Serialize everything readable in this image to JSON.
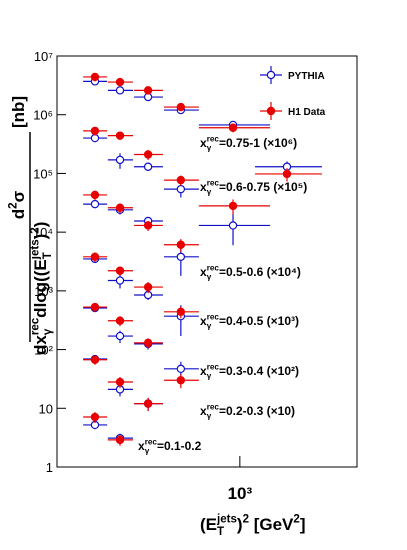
{
  "chart_data": {
    "type": "scatter",
    "log_x": true,
    "log_y": true,
    "xlim": [
      180,
      3000
    ],
    "ylim": [
      1,
      10000000
    ],
    "xticks": [
      {
        "value": 1000,
        "label": "10³"
      }
    ],
    "yticks": [
      1,
      10,
      {
        "value": 100,
        "label": "10²"
      },
      {
        "value": 1000,
        "label": "10³"
      },
      {
        "value": 10000,
        "label": "10⁴"
      },
      {
        "value": 100000,
        "label": "10⁵"
      },
      {
        "value": 1000000,
        "label": "10⁶"
      },
      {
        "value": 10000000,
        "label": "10⁷"
      }
    ],
    "ylabel": {
      "numerator": [
        {
          "text": "d"
        },
        {
          "text": "2",
          "style": "sup"
        },
        {
          "text": "σ"
        }
      ],
      "denominator": [
        {
          "text": "dx"
        },
        {
          "text": "rec",
          "style": "sup"
        },
        {
          "text": "γ",
          "style": "sub"
        },
        {
          "text": "dlog((E"
        },
        {
          "text": "jets",
          "style": "sup"
        },
        {
          "text": "T",
          "style": "sub"
        },
        {
          "text": ")"
        },
        {
          "text": "2",
          "style": "sup"
        },
        {
          "text": ")"
        }
      ],
      "unit": "[nb]"
    },
    "xlabel": [
      {
        "text": "(E"
      },
      {
        "text": "jets",
        "style": "sup"
      },
      {
        "text": "T",
        "style": "sub"
      },
      {
        "text": ")"
      },
      {
        "text": "2",
        "style": "sup"
      },
      {
        "text": " [GeV"
      },
      {
        "text": "2",
        "style": "sup"
      },
      {
        "text": "]"
      }
    ],
    "legend": [
      {
        "name": "PYTHIA",
        "color": "#1010c8",
        "marker": "open"
      },
      {
        "name": "H1 Data",
        "color": "#e80000",
        "marker": "filled"
      }
    ],
    "x": [
      257,
      325,
      423,
      575,
      938,
      1556
    ],
    "xlow": [
      230,
      290,
      371,
      491,
      681,
      1153
    ],
    "xhigh": [
      288,
      367,
      486,
      681,
      1327,
      2158
    ],
    "groups": [
      {
        "label": [
          {
            "text": "x"
          },
          {
            "text": "rec",
            "style": "sup"
          },
          {
            "text": "γ",
            "style": "sub"
          },
          {
            "text": "=0.75-1 (×10⁶)"
          }
        ],
        "series": [
          {
            "legend": 0,
            "values": [
              3700000,
              2600000,
              2000000,
              1200000,
              670000,
              130000
            ],
            "yerr": [
              300000,
              250000,
              200000,
              120000,
              100000,
              30000
            ]
          },
          {
            "legend": 1,
            "values": [
              4400000,
              3600000,
              2600000,
              1350000,
              600000,
              98000
            ],
            "yerr": [
              700000,
              500000,
              400000,
              200000,
              100000,
              25000
            ]
          }
        ]
      },
      {
        "label": [
          {
            "text": "x"
          },
          {
            "text": "rec",
            "style": "sup"
          },
          {
            "text": "γ",
            "style": "sub"
          },
          {
            "text": "=0.6-0.75 (×10⁵)"
          }
        ],
        "series": [
          {
            "legend": 0,
            "values": [
              400000,
              170000,
              130000,
              54000,
              13000
            ],
            "yerr": [
              60000,
              50000,
              20000,
              15000,
              7000
            ]
          },
          {
            "legend": 1,
            "values": [
              530000,
              440000,
              210000,
              77000,
              28000
            ],
            "yerr": [
              90000,
              70000,
              40000,
              15000,
              8000
            ]
          }
        ]
      },
      {
        "label": [
          {
            "text": "x"
          },
          {
            "text": "rec",
            "style": "sup"
          },
          {
            "text": "γ",
            "style": "sub"
          },
          {
            "text": "=0.5-0.6 (×10⁴)"
          }
        ],
        "series": [
          {
            "legend": 0,
            "values": [
              30000,
              24000,
              15500,
              3800
            ],
            "yerr": [
              4000,
              4000,
              2500,
              2000
            ]
          },
          {
            "legend": 1,
            "values": [
              43000,
              26000,
              13000,
              6100
            ],
            "yerr": [
              8000,
              5000,
              2500,
              1500
            ]
          }
        ]
      },
      {
        "label": [
          {
            "text": "x"
          },
          {
            "text": "rec",
            "style": "sup"
          },
          {
            "text": "γ",
            "style": "sub"
          },
          {
            "text": "=0.4-0.5 (×10³)"
          }
        ],
        "series": [
          {
            "legend": 0,
            "values": [
              3500,
              1500,
              850,
              370
            ],
            "yerr": [
              400,
              400,
              150,
              200
            ]
          },
          {
            "legend": 1,
            "values": [
              3800,
              2200,
              1160,
              440
            ],
            "yerr": [
              700,
              400,
              250,
              100
            ]
          }
        ]
      },
      {
        "label": [
          {
            "text": "x"
          },
          {
            "text": "rec",
            "style": "sup"
          },
          {
            "text": "γ",
            "style": "sub"
          },
          {
            "text": "=0.3-0.4 (×10²)"
          }
        ],
        "series": [
          {
            "legend": 0,
            "values": [
              510,
              170,
              125,
              47
            ],
            "yerr": [
              60,
              40,
              25,
              15
            ]
          },
          {
            "legend": 1,
            "values": [
              530,
              310,
              130,
              30
            ],
            "yerr": [
              90,
              60,
              25,
              8
            ]
          }
        ]
      },
      {
        "label": [
          {
            "text": "x"
          },
          {
            "text": "rec",
            "style": "sup"
          },
          {
            "text": "γ",
            "style": "sub"
          },
          {
            "text": "=0.2-0.3 (×10)"
          }
        ],
        "series": [
          {
            "legend": 0,
            "values": [
              69,
              21,
              12
            ],
            "yerr": [
              10,
              5,
              3
            ]
          },
          {
            "legend": 1,
            "values": [
              67,
              28,
              12
            ],
            "yerr": [
              12,
              6,
              3
            ]
          }
        ]
      },
      {
        "label": [
          {
            "text": "x"
          },
          {
            "text": "rec",
            "style": "sup"
          },
          {
            "text": "γ",
            "style": "sub"
          },
          {
            "text": "=0.1-0.2"
          }
        ],
        "series": [
          {
            "legend": 0,
            "values": [
              5.2,
              3.1
            ],
            "yerr": [
              0.8,
              0.6
            ]
          },
          {
            "legend": 1,
            "values": [
              7.1,
              2.9
            ],
            "yerr": [
              1.5,
              0.6
            ]
          }
        ]
      }
    ]
  }
}
